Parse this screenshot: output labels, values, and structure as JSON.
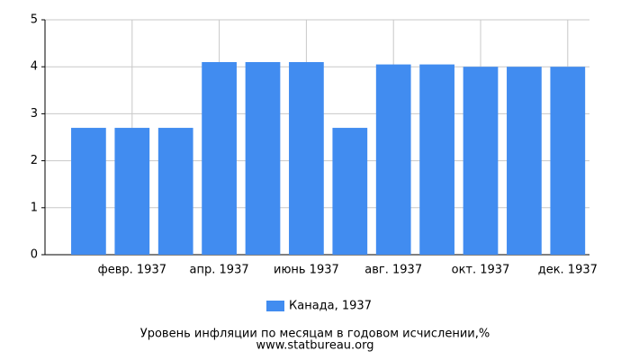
{
  "chart_data": {
    "type": "bar",
    "categories": [
      null,
      "февр. 1937",
      null,
      "апр. 1937",
      null,
      "июнь 1937",
      null,
      "авг. 1937",
      null,
      "окт. 1937",
      null,
      "дек. 1937"
    ],
    "series": [
      {
        "name": "Канада, 1937",
        "color": "#418cf0",
        "values": [
          2.7,
          2.7,
          2.7,
          4.1,
          4.1,
          4.1,
          2.7,
          4.05,
          4.05,
          4.0,
          4.0,
          4.0
        ]
      }
    ],
    "ylim": [
      0,
      5
    ],
    "yticks": [
      0,
      1,
      2,
      3,
      4,
      5
    ],
    "grid": true,
    "caption": "Уровень инфляции по месяцам в годовом исчислении,%",
    "source": "www.statbureau.org"
  }
}
